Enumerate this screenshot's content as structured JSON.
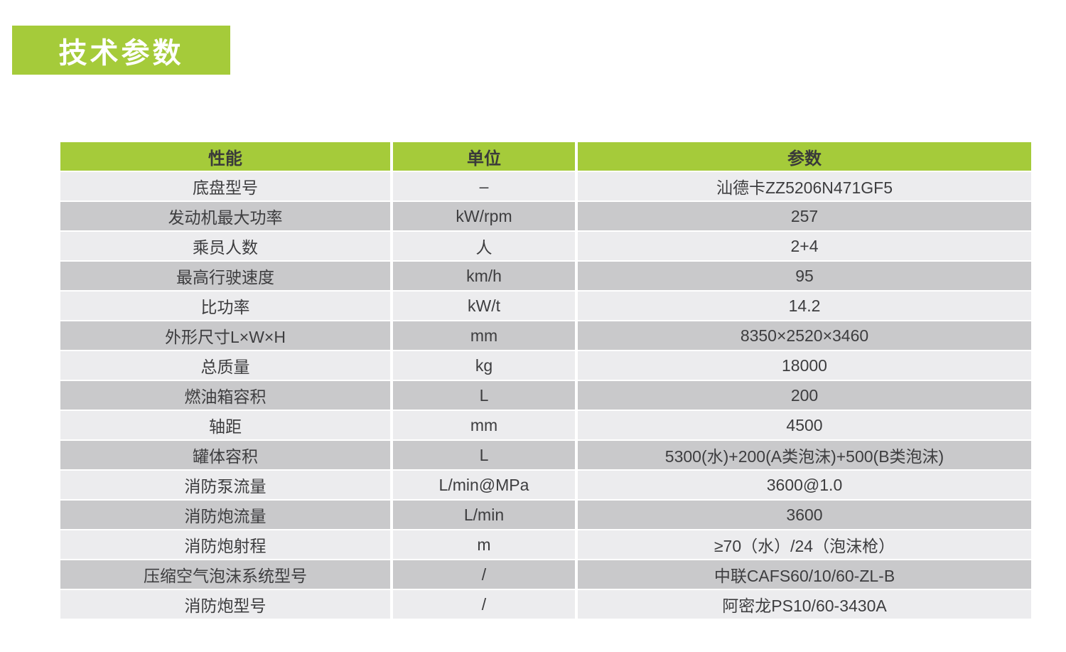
{
  "title": "技术参数",
  "colors": {
    "green": "#a5cb3a",
    "row_light": "#ececee",
    "row_dark": "#c9c9cb",
    "text": "#3d3d3f",
    "header_text": "#3a3a3a",
    "title_text": "#ffffff"
  },
  "table": {
    "headers": [
      "性能",
      "单位",
      "参数"
    ],
    "rows": [
      [
        "底盘型号",
        "–",
        "汕德卡ZZ5206N471GF5"
      ],
      [
        "发动机最大功率",
        "kW/rpm",
        "257"
      ],
      [
        "乘员人数",
        "人",
        "2+4"
      ],
      [
        "最高行驶速度",
        "km/h",
        "95"
      ],
      [
        "比功率",
        "kW/t",
        "14.2"
      ],
      [
        "外形尺寸L×W×H",
        "mm",
        "8350×2520×3460"
      ],
      [
        "总质量",
        "kg",
        "18000"
      ],
      [
        "燃油箱容积",
        "L",
        "200"
      ],
      [
        "轴距",
        "mm",
        "4500"
      ],
      [
        "罐体容积",
        "L",
        "5300(水)+200(A类泡沫)+500(B类泡沫)"
      ],
      [
        "消防泵流量",
        "L/min@MPa",
        "3600@1.0"
      ],
      [
        "消防炮流量",
        "L/min",
        "3600"
      ],
      [
        "消防炮射程",
        "m",
        "≥70（水）/24（泡沫枪）"
      ],
      [
        "压缩空气泡沫系统型号",
        "/",
        "中联CAFS60/10/60-ZL-B"
      ],
      [
        "消防炮型号",
        "/",
        "阿密龙PS10/60-3430A"
      ]
    ]
  }
}
